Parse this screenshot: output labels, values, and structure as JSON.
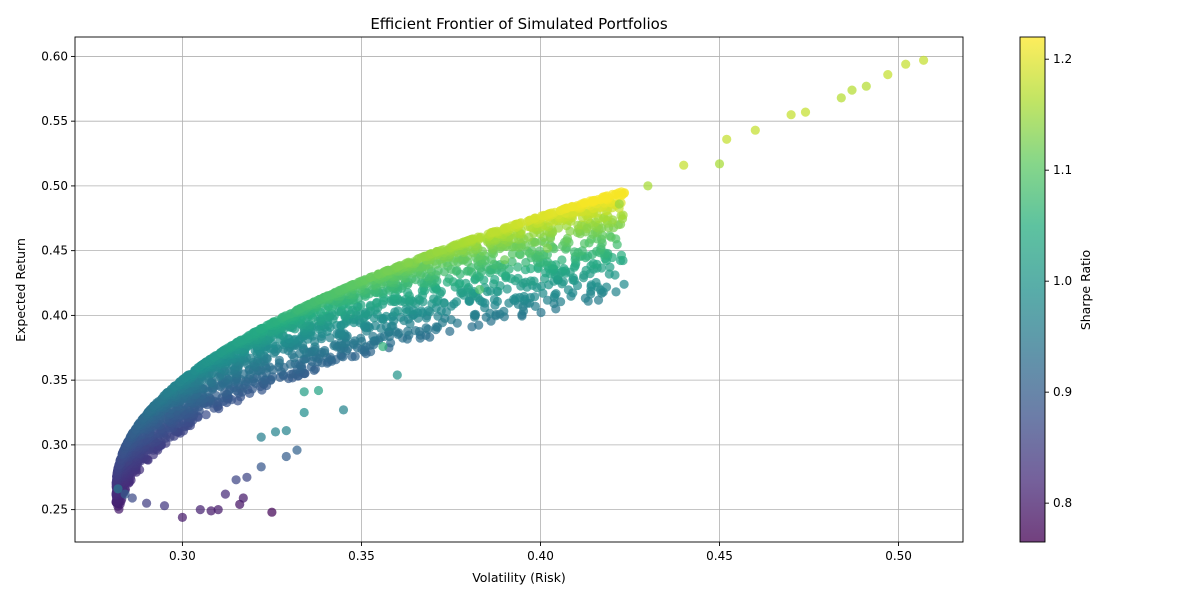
{
  "chart_data": {
    "type": "scatter",
    "title": "Efficient Frontier of Simulated Portfolios",
    "xlabel": "Volatility (Risk)",
    "ylabel": "Expected Return",
    "xlim": [
      0.27,
      0.518
    ],
    "ylim": [
      0.225,
      0.615
    ],
    "xticks": [
      "0.30",
      "0.35",
      "0.40",
      "0.45",
      "0.50"
    ],
    "xtick_values": [
      0.3,
      0.35,
      0.4,
      0.45,
      0.5
    ],
    "yticks": [
      "0.25",
      "0.30",
      "0.35",
      "0.40",
      "0.45",
      "0.50",
      "0.55",
      "0.60"
    ],
    "ytick_values": [
      0.25,
      0.3,
      0.35,
      0.4,
      0.45,
      0.5,
      0.55,
      0.6
    ],
    "grid": true,
    "colorbar": {
      "label": "Sharpe Ratio",
      "range": [
        0.765,
        1.22
      ],
      "ticks": [
        "0.8",
        "0.9",
        "1.0",
        "1.1",
        "1.2"
      ],
      "tick_values": [
        0.8,
        0.9,
        1.0,
        1.1,
        1.2
      ],
      "colormap": "viridis"
    },
    "series": [
      {
        "points": [
          [
            0.282,
            0.266,
            0.95
          ],
          [
            0.284,
            0.262,
            0.9
          ],
          [
            0.286,
            0.259,
            0.87
          ],
          [
            0.29,
            0.255,
            0.85
          ],
          [
            0.295,
            0.253,
            0.84
          ],
          [
            0.3,
            0.244,
            0.8
          ],
          [
            0.305,
            0.25,
            0.81
          ],
          [
            0.308,
            0.249,
            0.8
          ],
          [
            0.31,
            0.25,
            0.8
          ],
          [
            0.316,
            0.254,
            0.79
          ],
          [
            0.317,
            0.259,
            0.8
          ],
          [
            0.325,
            0.248,
            0.77
          ],
          [
            0.312,
            0.262,
            0.82
          ],
          [
            0.315,
            0.273,
            0.86
          ],
          [
            0.318,
            0.275,
            0.86
          ],
          [
            0.322,
            0.283,
            0.89
          ],
          [
            0.322,
            0.306,
            0.96
          ],
          [
            0.326,
            0.31,
            0.97
          ],
          [
            0.329,
            0.291,
            0.9
          ],
          [
            0.332,
            0.296,
            0.91
          ],
          [
            0.329,
            0.311,
            0.97
          ],
          [
            0.334,
            0.325,
            0.99
          ],
          [
            0.334,
            0.341,
            1.02
          ],
          [
            0.338,
            0.342,
            1.03
          ],
          [
            0.345,
            0.327,
            0.97
          ],
          [
            0.36,
            0.354,
            1.0
          ],
          [
            0.356,
            0.376,
            1.06
          ],
          [
            0.383,
            0.42,
            1.09
          ],
          [
            0.39,
            0.443,
            1.12
          ],
          [
            0.402,
            0.452,
            1.13
          ],
          [
            0.413,
            0.467,
            1.14
          ],
          [
            0.422,
            0.486,
            1.15
          ],
          [
            0.43,
            0.5,
            1.16
          ],
          [
            0.45,
            0.517,
            1.16
          ],
          [
            0.44,
            0.516,
            1.18
          ],
          [
            0.452,
            0.536,
            1.18
          ],
          [
            0.46,
            0.543,
            1.18
          ],
          [
            0.47,
            0.555,
            1.18
          ],
          [
            0.474,
            0.557,
            1.18
          ],
          [
            0.484,
            0.568,
            1.17
          ],
          [
            0.487,
            0.574,
            1.17
          ],
          [
            0.491,
            0.577,
            1.17
          ],
          [
            0.497,
            0.586,
            1.18
          ],
          [
            0.502,
            0.594,
            1.18
          ],
          [
            0.507,
            0.597,
            1.18
          ]
        ]
      }
    ]
  }
}
